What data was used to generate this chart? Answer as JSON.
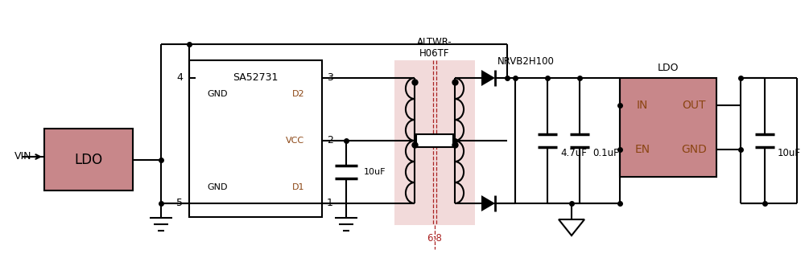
{
  "bg_color": "#ffffff",
  "line_color": "#000000",
  "box_fill_color": "#c8878a",
  "box_fill_light": "#f2dada",
  "orange_text": "#8b4513",
  "red_dashed": "#aa2222",
  "fig_width": 10.0,
  "fig_height": 3.16,
  "vin_label": "VIN",
  "ldo1_label": "LDO",
  "sa_label": "SA52731",
  "sa_gnd_left": "GND",
  "sa_gnd_right": "GND",
  "sa_d2": "D2",
  "sa_d1": "D1",
  "sa_vcc": "VCC",
  "sa_pin3": "3",
  "sa_pin2": "2",
  "sa_pin1": "1",
  "sa_pin4": "4",
  "sa_pin5": "5",
  "transformer_label_1": "ALTWR-",
  "transformer_label_2": "H06TF",
  "diode_label": "NRVB2H100",
  "ratio_label": "6:8",
  "cap1_label": "10uF",
  "cap2_label": "4.7uF",
  "cap3_label": "0.1uF",
  "cap4_label": "10uF",
  "ldo2_label": "LDO",
  "ldo2_in": "IN",
  "ldo2_out": "OUT",
  "ldo2_en": "EN",
  "ldo2_gnd": "GND"
}
